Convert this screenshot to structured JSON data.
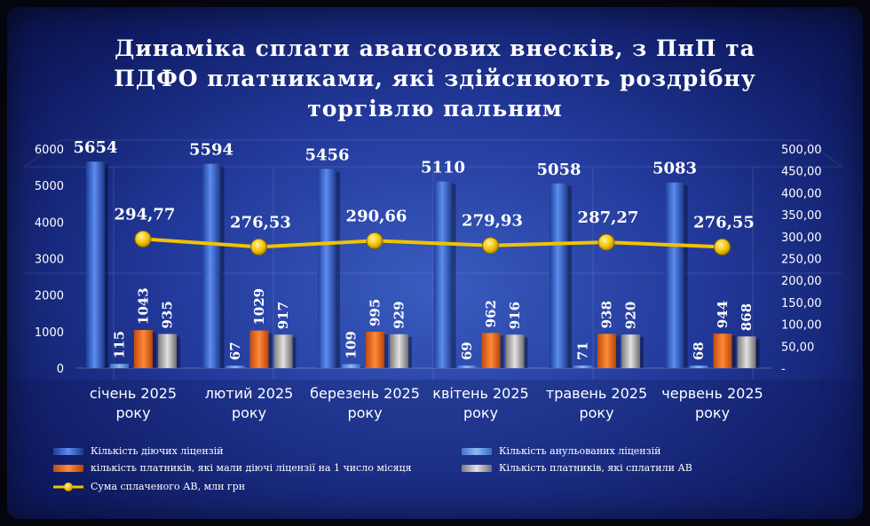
{
  "chart_data": {
    "type": "bar",
    "title_lines": [
      "Динаміка сплати авансових внесків, з ПнП та",
      "ПДФО платниками, які здійснюють роздрібну",
      "торгівлю пальним"
    ],
    "categories": [
      [
        "січень 2025",
        "року"
      ],
      [
        "лютий 2025",
        "року"
      ],
      [
        "березень 2025",
        "року"
      ],
      [
        "квітень 2025",
        "року"
      ],
      [
        "травень 2025",
        "року"
      ],
      [
        "червень 2025",
        "року"
      ]
    ],
    "series": [
      {
        "name": "Кількість діючих ліцензій",
        "axis": "left",
        "color": "#3a6fd6",
        "values": [
          5654,
          5594,
          5456,
          5110,
          5058,
          5083
        ]
      },
      {
        "name": "Кількість анульованих ліцензій",
        "axis": "left",
        "color": "#5d95e6",
        "values": [
          115,
          67,
          109,
          69,
          71,
          68
        ]
      },
      {
        "name": "кількість платників, які мали діючі ліцензії на 1 число місяця",
        "axis": "left",
        "color": "#ee6b1e",
        "values": [
          1043,
          1029,
          995,
          962,
          938,
          944
        ]
      },
      {
        "name": "Кількість платників, які сплатили АВ",
        "axis": "left",
        "color": "#a8a8a8",
        "values": [
          935,
          917,
          929,
          916,
          920,
          868
        ]
      },
      {
        "name": "Сума сплаченого АВ, млн грн",
        "axis": "right",
        "type": "line",
        "color": "#f2c200",
        "values": [
          294.77,
          276.53,
          290.66,
          279.93,
          287.27,
          276.55
        ],
        "labels": [
          "294,77",
          "276,53",
          "290,66",
          "279,93",
          "287,27",
          "276,55"
        ]
      }
    ],
    "y_left": {
      "ylim": [
        0,
        6000
      ],
      "ticks": [
        "0",
        "1000",
        "2000",
        "3000",
        "4000",
        "5000",
        "6000"
      ]
    },
    "y_right": {
      "ylim": [
        0,
        500
      ],
      "ticks": [
        "-",
        "50,00",
        "100,00",
        "150,00",
        "200,00",
        "250,00",
        "300,00",
        "350,00",
        "400,00",
        "450,00",
        "500,00"
      ]
    },
    "grid": false,
    "legend_position": "bottom"
  }
}
